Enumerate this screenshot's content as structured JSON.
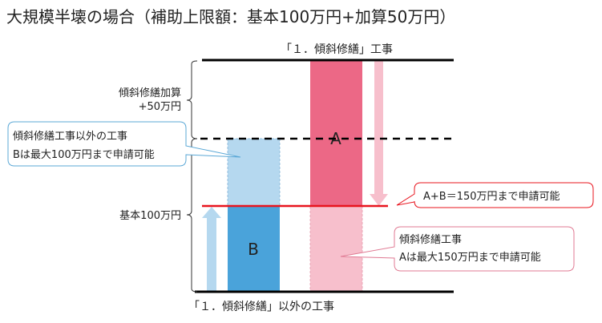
{
  "title": "大規模半壊の場合（補助上限額：基本100万円+加算50万円）",
  "top_label": "「１．傾斜修繕」工事",
  "bottom_label": "「１．傾斜修繕」以外の工事",
  "axis_labels": {
    "add_line1": "傾斜修繕加算",
    "add_line2": "+50万円",
    "base": "基本100万円"
  },
  "bars": {
    "a": "A",
    "b": "B"
  },
  "callouts": {
    "blue_line1": "傾斜修繕工事以外の工事",
    "blue_line2": "Bは最大100万円まで申請可能",
    "red": "A+B＝150万円まで申請可能",
    "pink_line1": "傾斜修繕工事",
    "pink_line2": "Aは最大150万円まで申請可能"
  },
  "colors": {
    "a_dark": "#ec6886",
    "a_light": "#f7bfcc",
    "b_dark": "#4aa3da",
    "b_light": "#b5d8ef",
    "limit_line": "#e8141e"
  }
}
